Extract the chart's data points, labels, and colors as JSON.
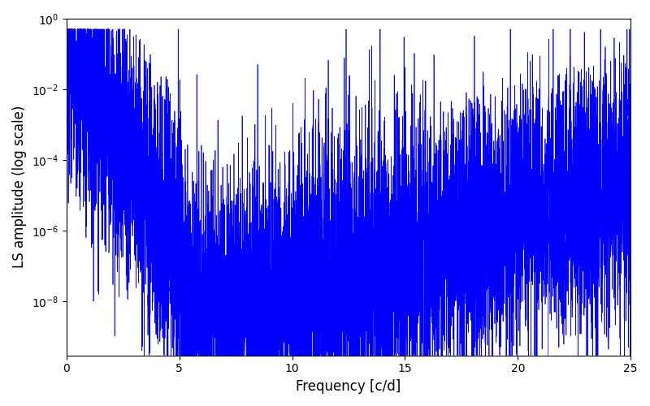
{
  "xlabel": "Frequency [c/d]",
  "ylabel": "LS amplitude (log scale)",
  "xlim": [
    0,
    25
  ],
  "ylim": [
    3e-10,
    1
  ],
  "line_color": "#0000ff",
  "line_width": 0.5,
  "freq_min": 0.0,
  "freq_max": 25.0,
  "n_points": 8000,
  "background_color": "#ffffff",
  "seed": 7
}
